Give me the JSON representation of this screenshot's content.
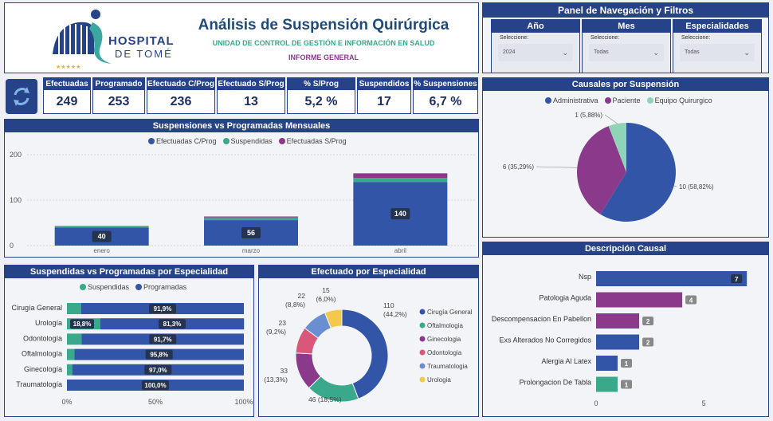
{
  "header": {
    "hospital_name": "HOSPITAL",
    "hospital_sub": "DE TOMÉ",
    "title": "Análisis de Suspensión Quirúrgica",
    "subtitle": "UNIDAD DE CONTROL DE GESTIÓN E INFORMACIÓN EN SALUD",
    "report": "INFORME GENERAL",
    "logo_stars": "★★★★★"
  },
  "nav": {
    "title": "Panel de Navegación y Filtros",
    "filters": [
      {
        "label": "Año",
        "select_label": "Seleccione:",
        "value": "2024"
      },
      {
        "label": "Mes",
        "select_label": "Seleccione:",
        "value": "Todas"
      },
      {
        "label": "Especialidades",
        "select_label": "Seleccione:",
        "value": "Todas"
      }
    ]
  },
  "kpis": [
    {
      "label": "Efectuadas",
      "value": "249"
    },
    {
      "label": "Programado",
      "value": "253"
    },
    {
      "label": "Efectuado C/Prog",
      "value": "236"
    },
    {
      "label": "Efectuado S/Prog",
      "value": "13"
    },
    {
      "label": "% S/Prog",
      "value": "5,2 %"
    },
    {
      "label": "Suspendidos",
      "value": "17"
    },
    {
      "label": "% Suspensiones",
      "value": "6,7 %"
    }
  ],
  "colors": {
    "navy": "#26438a",
    "blue": "#3355a8",
    "teal": "#3aa88a",
    "purple": "#8b3a8b",
    "pink": "#d9587a",
    "lightblue": "#6a8fd0",
    "yellow": "#f2c94c",
    "mint": "#8fd4b8"
  },
  "monthly": {
    "title": "Suspensiones vs Programadas Mensuales",
    "legend": [
      "Efectuadas C/Prog",
      "Suspendidas",
      "Efectuadas S/Prog"
    ],
    "chart_data": {
      "type": "bar",
      "categories": [
        "enero",
        "marzo",
        "abril"
      ],
      "series": [
        {
          "name": "Efectuadas C/Prog",
          "values": [
            40,
            56,
            140
          ]
        },
        {
          "name": "Suspendidas",
          "values": [
            2,
            6,
            9
          ]
        },
        {
          "name": "Efectuadas S/Prog",
          "values": [
            1,
            2,
            10
          ]
        }
      ],
      "labels": [
        "40",
        "56",
        "140"
      ],
      "yticks": [
        "0",
        "100",
        "200"
      ],
      "ylim": [
        0,
        200
      ]
    }
  },
  "causales": {
    "title": "Causales por Suspensión",
    "legend": [
      "Administrativa",
      "Paciente",
      "Equipo Quirurgico"
    ],
    "chart_data": {
      "type": "pie",
      "labels": [
        "Administrativa",
        "Paciente",
        "Equipo Quirurgico"
      ],
      "values": [
        10,
        6,
        1
      ],
      "data_labels": [
        "10 (58,82%)",
        "6 (35,29%)",
        "1 (5,88%)"
      ]
    }
  },
  "descripcion": {
    "title": "Descripción Causal",
    "chart_data": {
      "type": "bar",
      "orientation": "horizontal",
      "categories": [
        "Nsp",
        "Patologia Aguda",
        "Descompensacion En Pabellon",
        "Exs Alterados No Corregidos",
        "Alergia Al Latex",
        "Prolongacion De Tabla"
      ],
      "values": [
        7,
        4,
        2,
        2,
        1,
        1
      ],
      "labels": [
        "7",
        "4",
        "2",
        "2",
        "1",
        "1"
      ],
      "xticks": [
        "0",
        "5"
      ],
      "xlim": [
        0,
        7.4
      ]
    }
  },
  "especialidad_pct": {
    "title": "Suspendidas vs Programadas por Especialidad",
    "legend": [
      "Suspendidas",
      "Programadas"
    ],
    "chart_data": {
      "type": "bar",
      "orientation": "horizontal",
      "stacked": "100%",
      "categories": [
        "Cirugía General",
        "Urología",
        "Odontología",
        "Oftalmología",
        "Ginecología",
        "Traumatología"
      ],
      "series": [
        {
          "name": "Suspendidas",
          "values": [
            8.1,
            18.8,
            8.3,
            4.2,
            3.0,
            0
          ]
        },
        {
          "name": "Programadas",
          "values": [
            91.9,
            81.3,
            91.7,
            95.8,
            97.0,
            100.0
          ]
        }
      ],
      "susp_labels": [
        "",
        "18,8%",
        "",
        "",
        "",
        ""
      ],
      "prog_labels": [
        "91,9%",
        "81,3%",
        "91,7%",
        "95,8%",
        "97,0%",
        "100,0%"
      ],
      "xticks": [
        "0%",
        "50%",
        "100%"
      ]
    }
  },
  "efectuado": {
    "title": "Efectuado por Especialidad",
    "legend": [
      "Cirugía General",
      "Oftalmologia",
      "Ginecologia",
      "Odontologia",
      "Traumatologia",
      "Urologia"
    ],
    "chart_data": {
      "type": "pie",
      "donut": true,
      "labels": [
        "Cirugía General",
        "Oftalmologia",
        "Ginecologia",
        "Odontologia",
        "Traumatologia",
        "Urologia"
      ],
      "values": [
        110,
        46,
        33,
        23,
        22,
        15
      ],
      "data_labels": [
        [
          "110",
          "(44,2%)"
        ],
        [
          "46 (18,5%)"
        ],
        [
          "33",
          "(13,3%)"
        ],
        [
          "23",
          "(9,2%)"
        ],
        [
          "22",
          "(8,8%)"
        ],
        [
          "15",
          "(6,0%)"
        ]
      ]
    }
  }
}
